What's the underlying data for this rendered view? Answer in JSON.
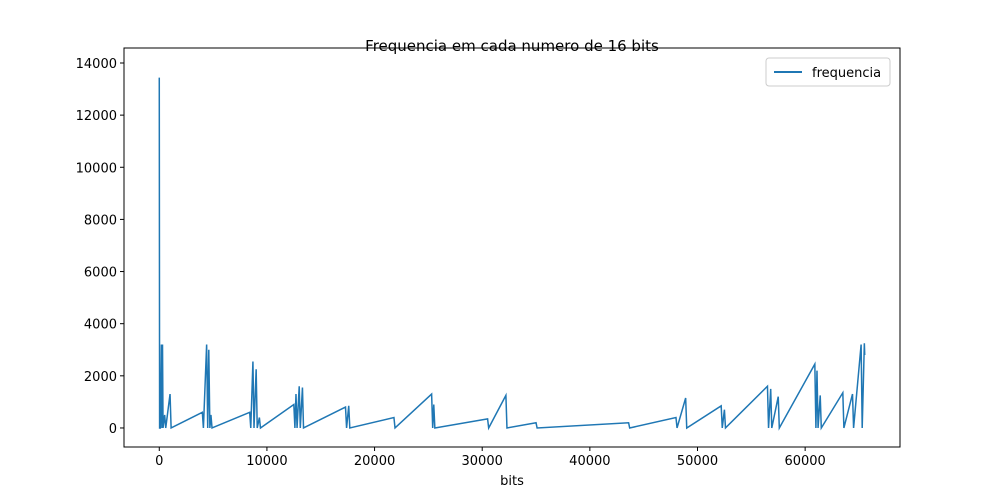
{
  "chart_data": {
    "type": "line",
    "title": "Frequencia em cada numero de 16 bits",
    "xlabel": "bits",
    "x": [
      0,
      30,
      100,
      200,
      250,
      300,
      350,
      500,
      600,
      1000,
      1100,
      4000,
      4100,
      4400,
      4500,
      4600,
      4700,
      4800,
      4900,
      8400,
      8500,
      8700,
      8800,
      9000,
      9100,
      9300,
      9400,
      12500,
      12600,
      12700,
      12800,
      13000,
      13100,
      13300,
      13400,
      17300,
      17400,
      17600,
      17700,
      21800,
      21900,
      25300,
      25400,
      25500,
      25600,
      30500,
      30600,
      32200,
      32300,
      35000,
      35100,
      43600,
      43700,
      48000,
      48100,
      48900,
      49000,
      52200,
      52300,
      52500,
      52600,
      56500,
      56600,
      56800,
      56900,
      57500,
      57600,
      60900,
      61000,
      61100,
      61200,
      61400,
      61500,
      63500,
      63600,
      64400,
      64500,
      65200,
      65300,
      65500,
      65535
    ],
    "series": [
      {
        "name": "frequencia",
        "color": "#1f77b4",
        "values": [
          13440,
          0,
          0,
          3200,
          0,
          3200,
          0,
          500,
          0,
          1300,
          0,
          600,
          0,
          3200,
          0,
          3000,
          0,
          500,
          0,
          600,
          0,
          2550,
          0,
          2250,
          0,
          400,
          0,
          900,
          0,
          1300,
          0,
          1600,
          0,
          1550,
          0,
          800,
          0,
          850,
          0,
          400,
          0,
          1300,
          0,
          900,
          0,
          350,
          0,
          1250,
          0,
          200,
          0,
          200,
          0,
          400,
          0,
          1150,
          0,
          850,
          0,
          700,
          0,
          1600,
          0,
          1500,
          0,
          1200,
          0,
          2450,
          0,
          2200,
          0,
          1250,
          0,
          1350,
          0,
          1300,
          0,
          3200,
          0,
          3250,
          2800
        ]
      }
    ],
    "xlim": [
      -3277,
      68812
    ],
    "ylim": [
      -730,
      14575
    ],
    "xticks": [
      0,
      10000,
      20000,
      30000,
      40000,
      50000,
      60000
    ],
    "yticks": [
      0,
      2000,
      4000,
      6000,
      8000,
      10000,
      12000,
      14000
    ],
    "legend": "upper right"
  }
}
